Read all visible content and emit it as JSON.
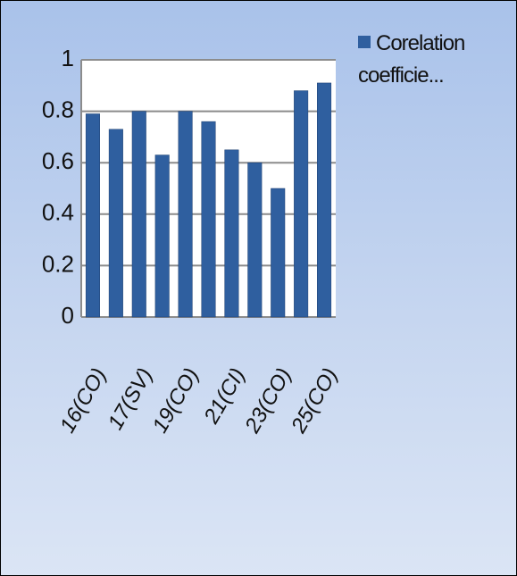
{
  "chart_data": {
    "type": "bar",
    "categories": [
      "16(CO)",
      null,
      "17(SV)",
      null,
      "19(CO)",
      null,
      "21(CI)",
      null,
      "23(CO)",
      null,
      "25(CO)"
    ],
    "series": [
      {
        "name": "Corelation coefficie...",
        "color": "#2f5f9f",
        "values": [
          0.79,
          0.73,
          0.8,
          0.63,
          0.8,
          0.76,
          0.65,
          0.6,
          0.5,
          0.88,
          0.91
        ]
      }
    ],
    "ylim": [
      0,
      1
    ],
    "yticks": [
      0,
      0.2,
      0.4,
      0.6,
      0.8,
      1
    ],
    "grid": true,
    "legend": "top-right"
  }
}
